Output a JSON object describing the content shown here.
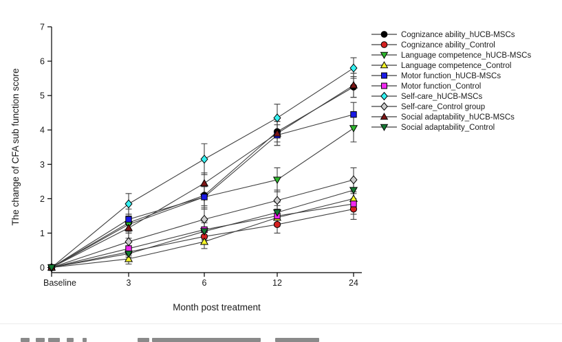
{
  "page": {
    "background": "#ffffff",
    "divider_color": "#ebebeb"
  },
  "chart_data": {
    "type": "line",
    "title": "",
    "xlabel": "Month post treatment",
    "ylabel": "The change of CFA sub function score",
    "x_tick_labels": [
      "Baseline",
      "3",
      "6",
      "12",
      "24"
    ],
    "yticks": [
      0,
      1,
      2,
      3,
      4,
      5,
      6,
      7
    ],
    "ylim": [
      0,
      7
    ],
    "grid": false,
    "legend_position": "right",
    "error_bars": true,
    "line_color": "#3f3f3f",
    "series": [
      {
        "name": "Cognizance ability_hUCB-MSCs",
        "marker": "circle",
        "color": "#000000",
        "values": [
          0,
          1.3,
          2.1,
          3.95,
          5.25
        ],
        "errors": [
          0,
          0.25,
          0.3,
          0.3,
          0.3
        ]
      },
      {
        "name": "Cognizance ability_Control",
        "marker": "circle",
        "color": "#d42121",
        "values": [
          0,
          0.45,
          0.9,
          1.25,
          1.7
        ],
        "errors": [
          0,
          0.15,
          0.2,
          0.25,
          0.3
        ]
      },
      {
        "name": "Language competence_hUCB-MSCs",
        "marker": "triangle-down",
        "color": "#2eb82e",
        "values": [
          0,
          1.25,
          2.05,
          2.55,
          4.05
        ],
        "errors": [
          0,
          0.25,
          0.3,
          0.35,
          0.4
        ]
      },
      {
        "name": "Language competence_Control",
        "marker": "triangle-up",
        "color": "#f5f52a",
        "values": [
          0,
          0.25,
          0.75,
          1.45,
          2.0
        ],
        "errors": [
          0,
          0.15,
          0.2,
          0.25,
          0.3
        ]
      },
      {
        "name": "Motor function_hUCB-MSCs",
        "marker": "square",
        "color": "#1a1ae6",
        "values": [
          0,
          1.4,
          2.05,
          3.85,
          4.45
        ],
        "errors": [
          0,
          0.3,
          0.35,
          0.3,
          0.35
        ]
      },
      {
        "name": "Motor function_Control",
        "marker": "square",
        "color": "#f02af0",
        "values": [
          0,
          0.55,
          1.1,
          1.5,
          1.85
        ],
        "errors": [
          0,
          0.2,
          0.25,
          0.3,
          0.3
        ]
      },
      {
        "name": "Self-care_hUCB-MSCs",
        "marker": "diamond",
        "color": "#35f2f2",
        "values": [
          0,
          1.85,
          3.15,
          4.35,
          5.8
        ],
        "errors": [
          0,
          0.3,
          0.45,
          0.4,
          0.3
        ]
      },
      {
        "name": "Self-care_Control group",
        "marker": "diamond",
        "color": "#cccccc",
        "values": [
          0,
          0.75,
          1.4,
          1.95,
          2.55
        ],
        "errors": [
          0,
          0.25,
          0.3,
          0.3,
          0.35
        ]
      },
      {
        "name": "Social adaptability_hUCB-MSCs",
        "marker": "triangle-up",
        "color": "#7d1616",
        "values": [
          0,
          1.15,
          2.45,
          3.9,
          5.3
        ],
        "errors": [
          0,
          0.3,
          0.3,
          0.35,
          0.35
        ]
      },
      {
        "name": "Social adaptability_Control",
        "marker": "triangle-down",
        "color": "#157a33",
        "values": [
          0,
          0.4,
          1.05,
          1.6,
          2.25
        ],
        "errors": [
          0,
          0.2,
          0.25,
          0.3,
          0.3
        ]
      }
    ]
  }
}
